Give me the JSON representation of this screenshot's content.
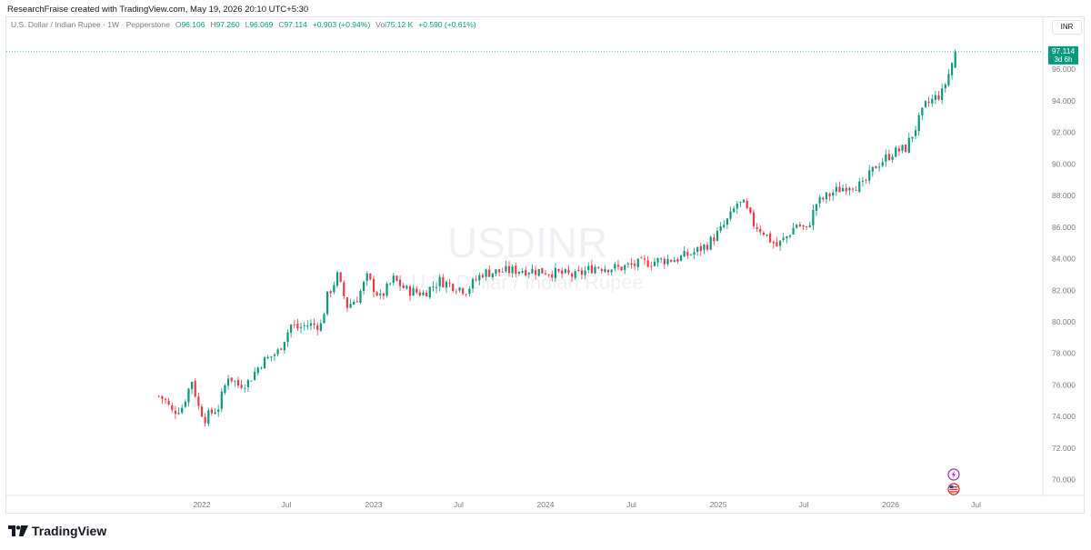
{
  "header": {
    "text": "ResearchFraise created with TradingView.com, May 19, 2026 20:10 UTC+5:30"
  },
  "legend": {
    "symbol": "U.S. Dollar / Indian Rupee · 1W · Pepperstone",
    "o_label": "O",
    "o_value": "96.106",
    "h_label": "H",
    "h_value": "97.260",
    "l_label": "L",
    "l_value": "96.069",
    "c_label": "C",
    "c_value": "97.114",
    "change": "+0.903 (+0.94%)",
    "vol_label": "Vol",
    "vol_value": "75.12 K",
    "vol_change": "+0.590 (+0.61%)"
  },
  "currency_button": "INR",
  "watermark": {
    "symbol": "USDINR",
    "name": "U.S. Dollar / Indian Rupee"
  },
  "price_label": {
    "value": "97.114",
    "countdown": "3d 6h"
  },
  "brand": {
    "name": "TradingView"
  },
  "colors": {
    "up": "#089981",
    "down": "#f23645",
    "axis_text": "#787b86",
    "accent": "#089981"
  },
  "chart_data": {
    "type": "candlestick",
    "interval": "1W",
    "y_axis": {
      "ticks": [
        70,
        72,
        74,
        76,
        78,
        80,
        82,
        84,
        86,
        88,
        90,
        92,
        94,
        96
      ],
      "tick_labels": [
        "70.000",
        "72.000",
        "74.000",
        "76.000",
        "78.000",
        "80.000",
        "82.000",
        "84.000",
        "86.000",
        "88.000",
        "90.000",
        "92.000",
        "94.000",
        "96.000"
      ],
      "range": [
        69.0,
        98.2
      ],
      "position": "right"
    },
    "x_axis": {
      "tick_labels": [
        "2022",
        "Jul",
        "2023",
        "Jul",
        "2024",
        "Jul",
        "2025",
        "Jul",
        "2026",
        "Jul"
      ]
    },
    "last_price": 97.114,
    "anchors": [
      [
        "2021-10-04",
        75.3
      ],
      [
        "2021-10-18",
        75.0
      ],
      [
        "2021-11-01",
        74.3
      ],
      [
        "2021-11-22",
        74.6
      ],
      [
        "2021-12-13",
        76.3
      ],
      [
        "2021-12-27",
        74.6
      ],
      [
        "2022-01-10",
        73.9
      ],
      [
        "2022-02-07",
        74.6
      ],
      [
        "2022-02-28",
        76.6
      ],
      [
        "2022-03-21",
        76.0
      ],
      [
        "2022-04-11",
        76.2
      ],
      [
        "2022-05-09",
        77.4
      ],
      [
        "2022-06-13",
        78.1
      ],
      [
        "2022-07-11",
        79.8
      ],
      [
        "2022-07-25",
        79.6
      ],
      [
        "2022-08-15",
        79.8
      ],
      [
        "2022-09-12",
        79.8
      ],
      [
        "2022-09-26",
        81.6
      ],
      [
        "2022-10-17",
        82.9
      ],
      [
        "2022-11-07",
        81.0
      ],
      [
        "2022-11-28",
        81.5
      ],
      [
        "2022-12-19",
        82.8
      ],
      [
        "2023-01-16",
        81.5
      ],
      [
        "2023-02-13",
        82.7
      ],
      [
        "2023-03-13",
        82.0
      ],
      [
        "2023-04-17",
        81.8
      ],
      [
        "2023-05-22",
        82.6
      ],
      [
        "2023-07-17",
        82.0
      ],
      [
        "2023-08-21",
        83.1
      ],
      [
        "2023-10-02",
        83.2
      ],
      [
        "2023-11-13",
        83.3
      ],
      [
        "2024-01-01",
        83.2
      ],
      [
        "2024-03-04",
        82.9
      ],
      [
        "2024-04-15",
        83.5
      ],
      [
        "2024-06-03",
        83.4
      ],
      [
        "2024-07-22",
        83.7
      ],
      [
        "2024-09-02",
        83.9
      ],
      [
        "2024-10-07",
        84.0
      ],
      [
        "2024-11-11",
        84.4
      ],
      [
        "2024-12-09",
        84.9
      ],
      [
        "2025-01-06",
        85.8
      ],
      [
        "2025-01-27",
        86.7
      ],
      [
        "2025-02-10",
        87.5
      ],
      [
        "2025-02-24",
        87.4
      ],
      [
        "2025-03-17",
        86.2
      ],
      [
        "2025-04-07",
        85.7
      ],
      [
        "2025-04-21",
        85.2
      ],
      [
        "2025-05-05",
        84.8
      ],
      [
        "2025-05-26",
        85.4
      ],
      [
        "2025-06-16",
        86.2
      ],
      [
        "2025-07-07",
        85.8
      ],
      [
        "2025-07-28",
        87.5
      ],
      [
        "2025-09-01",
        88.2
      ],
      [
        "2025-10-06",
        88.7
      ],
      [
        "2025-11-03",
        88.6
      ],
      [
        "2025-12-01",
        89.9
      ],
      [
        "2026-01-05",
        90.7
      ],
      [
        "2026-02-02",
        91.0
      ],
      [
        "2026-02-23",
        92.3
      ],
      [
        "2026-03-16",
        93.7
      ],
      [
        "2026-04-06",
        94.2
      ],
      [
        "2026-04-20",
        94.5
      ],
      [
        "2026-05-04",
        95.7
      ],
      [
        "2026-05-18",
        97.114
      ]
    ]
  }
}
